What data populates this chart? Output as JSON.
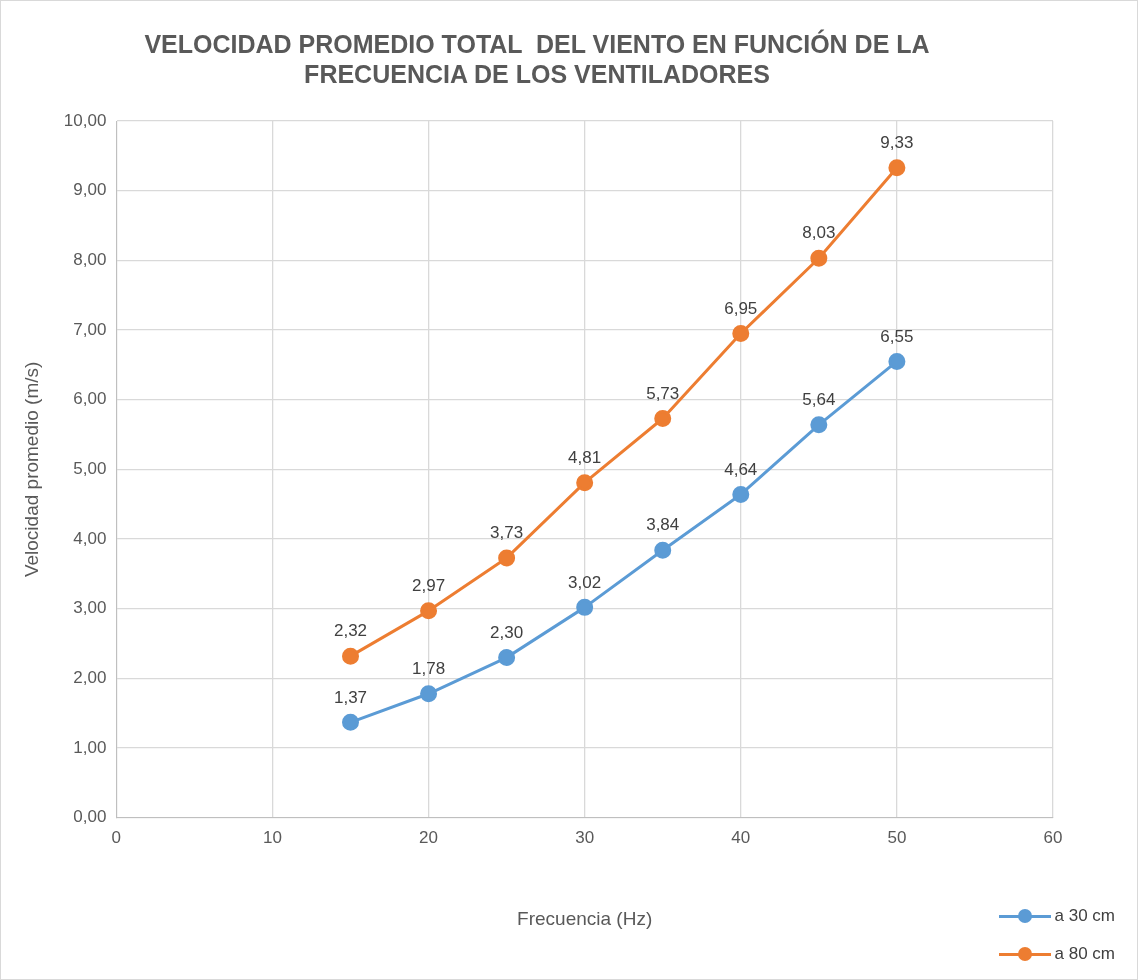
{
  "chart_data": {
    "type": "line",
    "title": "VELOCIDAD PROMEDIO TOTAL  DEL VIENTO EN FUNCIÓN DE LA FRECUENCIA DE LOS VENTILADORES",
    "xlabel": "Frecuencia (Hz)",
    "ylabel": "Velocidad promedio (m/s)",
    "x": [
      15,
      20,
      25,
      30,
      35,
      40,
      45,
      50
    ],
    "series": [
      {
        "name": "a 30 cm",
        "color": "#5b9bd5",
        "values": [
          1.37,
          1.78,
          2.3,
          3.02,
          3.84,
          4.64,
          5.64,
          6.55
        ],
        "value_labels": [
          "1,37",
          "1,78",
          "2,30",
          "3,02",
          "3,84",
          "4,64",
          "5,64",
          "6,55"
        ]
      },
      {
        "name": "a 80 cm",
        "color": "#ed7d31",
        "values": [
          2.32,
          2.97,
          3.73,
          4.81,
          5.73,
          6.95,
          8.03,
          9.33
        ],
        "value_labels": [
          "2,32",
          "2,97",
          "3,73",
          "4,81",
          "5,73",
          "6,95",
          "8,03",
          "9,33"
        ]
      }
    ],
    "xlim": [
      0,
      60
    ],
    "xticks": [
      0,
      10,
      20,
      30,
      40,
      50,
      60
    ],
    "ylim": [
      0,
      10
    ],
    "yticks": [
      {
        "value": 0,
        "label": "0,00"
      },
      {
        "value": 1,
        "label": "1,00"
      },
      {
        "value": 2,
        "label": "2,00"
      },
      {
        "value": 3,
        "label": "3,00"
      },
      {
        "value": 4,
        "label": "4,00"
      },
      {
        "value": 5,
        "label": "5,00"
      },
      {
        "value": 6,
        "label": "6,00"
      },
      {
        "value": 7,
        "label": "7,00"
      },
      {
        "value": 8,
        "label": "8,00"
      },
      {
        "value": 9,
        "label": "9,00"
      },
      {
        "value": 10,
        "label": "10,00"
      }
    ],
    "grid": true,
    "legend": "bottom right",
    "marker": "circle",
    "line_style": "solid"
  }
}
